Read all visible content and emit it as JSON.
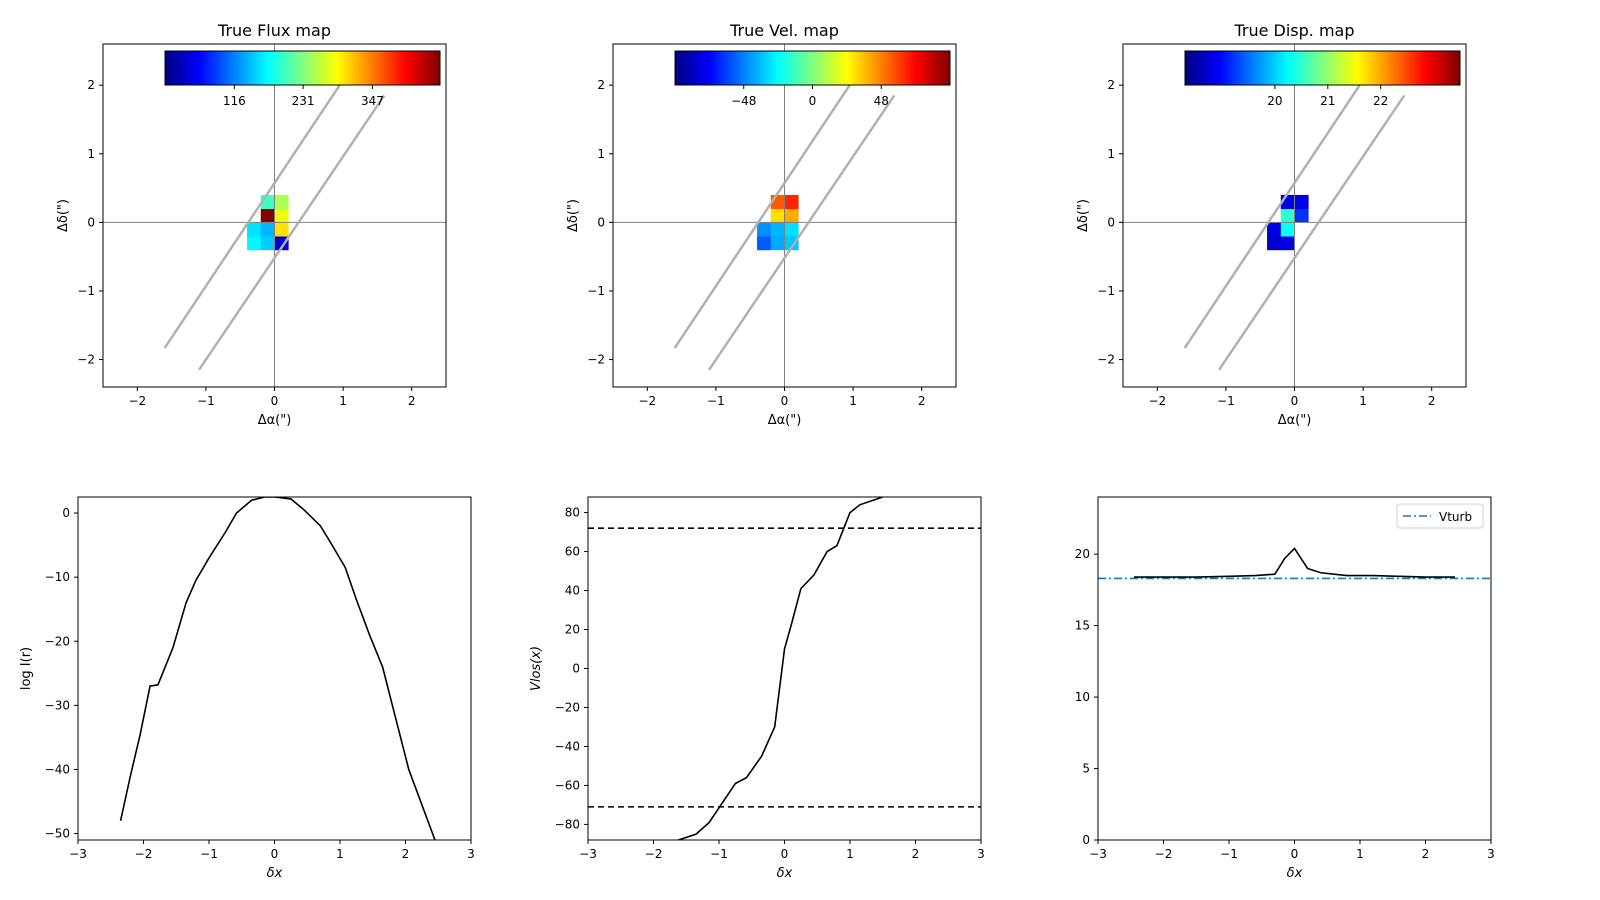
{
  "colors": {
    "axis": "#000000",
    "crosshair": "#808080",
    "slit": "#b0b0b0",
    "curve": "#000000",
    "vturb": "#1f77b4",
    "background": "#ffffff"
  },
  "chart_data": [
    {
      "type": "heatmap",
      "title": "True Flux map",
      "xlabel": "Δα(\")",
      "ylabel": "Δδ(\")",
      "xlim": [
        -2.5,
        2.5
      ],
      "ylim": [
        -2.4,
        2.6
      ],
      "xticks": [
        -2,
        -1,
        0,
        1,
        2
      ],
      "yticks": [
        -2,
        -1,
        0,
        1,
        2
      ],
      "colormap": "jet",
      "cmap_min": 0,
      "cmap_max": 460,
      "colorbar_ticks": [
        116,
        231,
        347
      ],
      "crosshair": true,
      "slit_lines": [
        {
          "x": [
            -1.6,
            0.95
          ],
          "y": [
            -1.83,
            2.0
          ]
        },
        {
          "x": [
            -1.1,
            1.6
          ],
          "y": [
            -2.15,
            1.85
          ]
        }
      ],
      "pixels": [
        {
          "x": -0.3,
          "y": -0.3,
          "value": 170
        },
        {
          "x": -0.1,
          "y": -0.3,
          "value": 150
        },
        {
          "x": 0.1,
          "y": -0.3,
          "value": 40
        },
        {
          "x": -0.3,
          "y": -0.1,
          "value": 160
        },
        {
          "x": -0.1,
          "y": -0.1,
          "value": 140
        },
        {
          "x": 0.1,
          "y": -0.1,
          "value": 300
        },
        {
          "x": -0.1,
          "y": 0.1,
          "value": 460
        },
        {
          "x": 0.1,
          "y": 0.1,
          "value": 280
        },
        {
          "x": -0.1,
          "y": 0.3,
          "value": 200
        },
        {
          "x": 0.1,
          "y": 0.3,
          "value": 250
        }
      ]
    },
    {
      "type": "heatmap",
      "title": "True Vel. map",
      "xlabel": "Δα(\")",
      "ylabel": "Δδ(\")",
      "xlim": [
        -2.5,
        2.5
      ],
      "ylim": [
        -2.4,
        2.6
      ],
      "xticks": [
        -2,
        -1,
        0,
        1,
        2
      ],
      "yticks": [
        -2,
        -1,
        0,
        1,
        2
      ],
      "colormap": "jet",
      "cmap_min": -96,
      "cmap_max": 96,
      "colorbar_ticks": [
        -48,
        0,
        48
      ],
      "crosshair": true,
      "slit_lines": [
        {
          "x": [
            -1.6,
            0.95
          ],
          "y": [
            -1.83,
            2.0
          ]
        },
        {
          "x": [
            -1.1,
            1.6
          ],
          "y": [
            -2.15,
            1.85
          ]
        }
      ],
      "pixels": [
        {
          "x": -0.3,
          "y": -0.3,
          "value": -55
        },
        {
          "x": -0.1,
          "y": -0.3,
          "value": -40
        },
        {
          "x": 0.1,
          "y": -0.3,
          "value": -35
        },
        {
          "x": -0.3,
          "y": -0.1,
          "value": -45
        },
        {
          "x": -0.1,
          "y": -0.1,
          "value": -38
        },
        {
          "x": 0.1,
          "y": -0.1,
          "value": -30
        },
        {
          "x": -0.1,
          "y": 0.1,
          "value": 30
        },
        {
          "x": 0.1,
          "y": 0.1,
          "value": 40
        },
        {
          "x": -0.1,
          "y": 0.3,
          "value": 55
        },
        {
          "x": 0.1,
          "y": 0.3,
          "value": 65
        }
      ]
    },
    {
      "type": "heatmap",
      "title": "True Disp. map",
      "xlabel": "Δα(\")",
      "ylabel": "Δδ(\")",
      "xlim": [
        -2.5,
        2.5
      ],
      "ylim": [
        -2.4,
        2.6
      ],
      "xticks": [
        -2,
        -1,
        0,
        1,
        2
      ],
      "yticks": [
        -2,
        -1,
        0,
        1,
        2
      ],
      "colormap": "jet",
      "cmap_min": 18.3,
      "cmap_max": 23.5,
      "colorbar_ticks": [
        20,
        21,
        22
      ],
      "crosshair": true,
      "slit_lines": [
        {
          "x": [
            -1.6,
            0.95
          ],
          "y": [
            -1.83,
            2.0
          ]
        },
        {
          "x": [
            -1.1,
            1.6
          ],
          "y": [
            -2.15,
            1.85
          ]
        }
      ],
      "pixels": [
        {
          "x": -0.3,
          "y": -0.3,
          "value": 18.7
        },
        {
          "x": -0.1,
          "y": -0.3,
          "value": 18.8
        },
        {
          "x": -0.3,
          "y": -0.1,
          "value": 18.8
        },
        {
          "x": -0.1,
          "y": -0.1,
          "value": 20.3
        },
        {
          "x": -0.1,
          "y": 0.1,
          "value": 20.5
        },
        {
          "x": 0.1,
          "y": 0.1,
          "value": 19.2
        },
        {
          "x": -0.1,
          "y": 0.3,
          "value": 18.8
        },
        {
          "x": 0.1,
          "y": 0.3,
          "value": 18.8
        }
      ]
    },
    {
      "type": "line",
      "xlabel": "δx",
      "ylabel": "log I(r)",
      "xlim": [
        -3,
        3
      ],
      "ylim": [
        -51,
        2.5
      ],
      "xticks": [
        -3,
        -2,
        -1,
        0,
        1,
        2,
        3
      ],
      "yticks": [
        -50,
        -40,
        -30,
        -20,
        -10,
        0
      ],
      "series": [
        {
          "x": [
            -2.35,
            -2.2,
            -2.05,
            -1.9,
            -1.78,
            -1.55,
            -1.35,
            -1.2,
            -1.0,
            -0.75,
            -0.58,
            -0.35,
            -0.15,
            0.0,
            0.25,
            0.45,
            0.7,
            0.85,
            1.08,
            1.25,
            1.45,
            1.65,
            1.85,
            2.05,
            2.25,
            2.45
          ],
          "y": [
            -48,
            -41,
            -34.5,
            -27,
            -26.8,
            -21,
            -14,
            -10.5,
            -7,
            -3,
            0,
            2,
            2.5,
            2.5,
            2.2,
            0.5,
            -2,
            -4.5,
            -8.5,
            -13.5,
            -19,
            -24,
            -32,
            -40,
            -45.5,
            -51
          ]
        }
      ]
    },
    {
      "type": "line",
      "xlabel": "δx",
      "ylabel": "Vlos(x)",
      "xlim": [
        -3,
        3
      ],
      "ylim": [
        -88,
        88
      ],
      "xticks": [
        -3,
        -2,
        -1,
        0,
        1,
        2,
        3
      ],
      "yticks": [
        -80,
        -60,
        -40,
        -20,
        0,
        20,
        40,
        60,
        80
      ],
      "hlines": [
        72,
        -71
      ],
      "series": [
        {
          "x": [
            -1.62,
            -1.35,
            -1.15,
            -0.95,
            -0.75,
            -0.58,
            -0.35,
            -0.15,
            0.0,
            0.1,
            0.25,
            0.45,
            0.65,
            0.8,
            1.0,
            1.15,
            1.5
          ],
          "y": [
            -88,
            -85,
            -79,
            -69,
            -59,
            -56,
            -45,
            -30,
            10,
            22,
            41,
            48,
            60,
            63,
            80,
            84,
            88
          ]
        }
      ]
    },
    {
      "type": "line",
      "xlabel": "δx",
      "ylabel": "",
      "xlim": [
        -3,
        3
      ],
      "ylim": [
        0,
        24
      ],
      "xticks": [
        -3,
        -2,
        -1,
        0,
        1,
        2,
        3
      ],
      "yticks": [
        0,
        5,
        10,
        15,
        20
      ],
      "legend": {
        "entries": [
          "Vturb"
        ],
        "position": "top-right"
      },
      "hlines": [
        18.3
      ],
      "series": [
        {
          "x": [
            -2.45,
            -2.0,
            -1.5,
            -1.0,
            -0.6,
            -0.3,
            -0.15,
            0.0,
            0.2,
            0.4,
            0.8,
            1.2,
            1.6,
            2.0,
            2.45
          ],
          "y": [
            18.4,
            18.4,
            18.4,
            18.45,
            18.5,
            18.6,
            19.7,
            20.4,
            19.0,
            18.7,
            18.5,
            18.5,
            18.45,
            18.4,
            18.4
          ]
        }
      ]
    }
  ]
}
